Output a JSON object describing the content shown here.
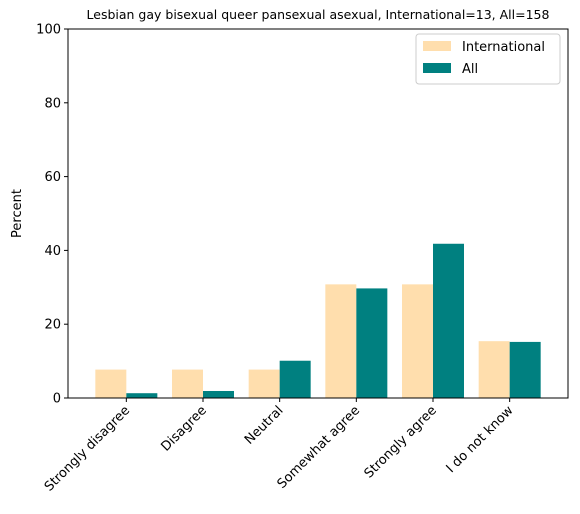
{
  "chart_data": {
    "type": "bar",
    "title": "Lesbian gay bisexual queer pansexual asexual, International=13, All=158",
    "xlabel": "",
    "ylabel": "Percent",
    "ylim": [
      0,
      100
    ],
    "yticks": [
      0,
      20,
      40,
      60,
      80,
      100
    ],
    "categories": [
      "Strongly disagree",
      "Disagree",
      "Neutral",
      "Somewhat agree",
      "Strongly agree",
      "I do not know"
    ],
    "series": [
      {
        "name": "International",
        "color": "#ffdead",
        "values": [
          7.7,
          7.7,
          7.7,
          30.8,
          30.8,
          15.4
        ]
      },
      {
        "name": "All",
        "color": "#008080",
        "values": [
          1.3,
          1.9,
          10.1,
          29.7,
          41.8,
          15.2
        ]
      }
    ],
    "legend": "top-right",
    "grid": false
  }
}
